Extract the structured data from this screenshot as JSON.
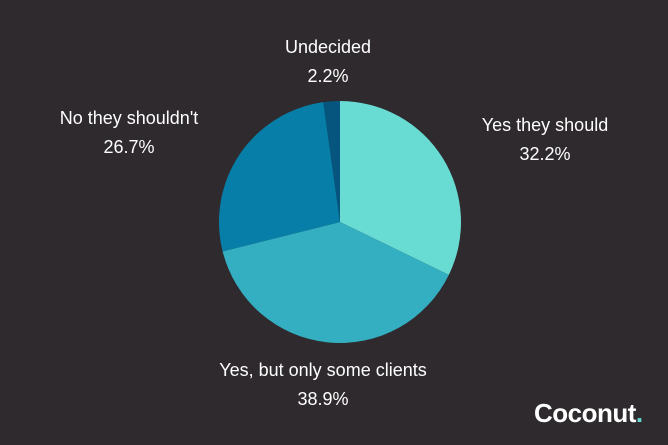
{
  "chart_data": {
    "type": "pie",
    "categories": [
      "Yes they should",
      "Yes, but only some clients",
      "No they shouldn't",
      "Undecided"
    ],
    "values": [
      32.2,
      38.9,
      26.7,
      2.2
    ],
    "value_labels": [
      "32.2%",
      "38.9%",
      "26.7%",
      "2.2%"
    ],
    "colors": [
      "#68dbd3",
      "#33afc1",
      "#077ea8",
      "#05557f"
    ],
    "start": "12 o'clock",
    "direction": "clockwise",
    "legend": "none"
  },
  "brand": {
    "name": "Coconut",
    "dot": ".",
    "dot_color": "#66d8d2"
  }
}
